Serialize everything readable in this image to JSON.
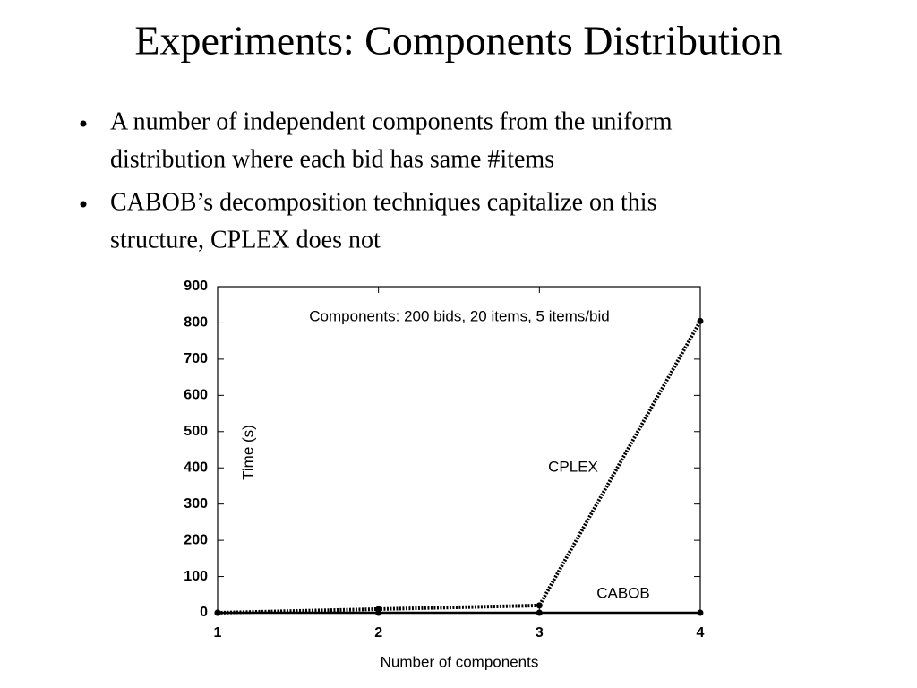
{
  "title": "Experiments: Components Distribution",
  "bullets": [
    [
      "A number of independent components from the uniform",
      "distribution where each bid has same #items"
    ],
    [
      "CABOB’s decomposition techniques capitalize on this",
      "structure, CPLEX does not"
    ]
  ],
  "chart_data": {
    "type": "line",
    "annotation": "Components: 200 bids, 20 items, 5 items/bid",
    "x_label": "Number of components",
    "y_label": "Time (s)",
    "x": [
      1,
      2,
      3,
      4
    ],
    "series": [
      {
        "name": "CPLEX",
        "color": "#000000",
        "line_style": "dotted",
        "values": [
          0,
          10,
          20,
          805
        ]
      },
      {
        "name": "CABOB",
        "color": "#000000",
        "line_style": "solid",
        "values": [
          0,
          0,
          0,
          0
        ]
      }
    ],
    "xlim": [
      1,
      4
    ],
    "xticks": [
      1,
      2,
      3,
      4
    ],
    "ylim": [
      0,
      900
    ],
    "yticks": [
      0,
      100,
      200,
      300,
      400,
      500,
      600,
      700,
      800,
      900
    ],
    "grid": false
  }
}
